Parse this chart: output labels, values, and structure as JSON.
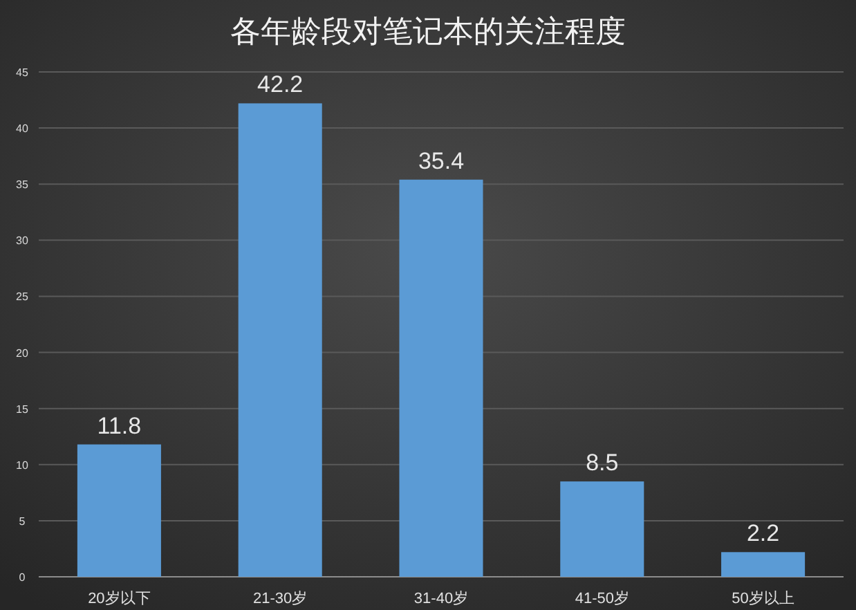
{
  "chart_data": {
    "type": "bar",
    "title": "各年龄段对笔记本的关注程度",
    "categories": [
      "20岁以下",
      "21-30岁",
      "31-40岁",
      "41-50岁",
      "50岁以上"
    ],
    "values": [
      11.8,
      42.2,
      35.4,
      8.5,
      2.2
    ],
    "color": "#5b9bd5",
    "ylim": [
      0,
      45
    ],
    "yticks": [
      0,
      5,
      10,
      15,
      20,
      25,
      30,
      35,
      40,
      45
    ],
    "grid": "y",
    "data_labels": true
  }
}
